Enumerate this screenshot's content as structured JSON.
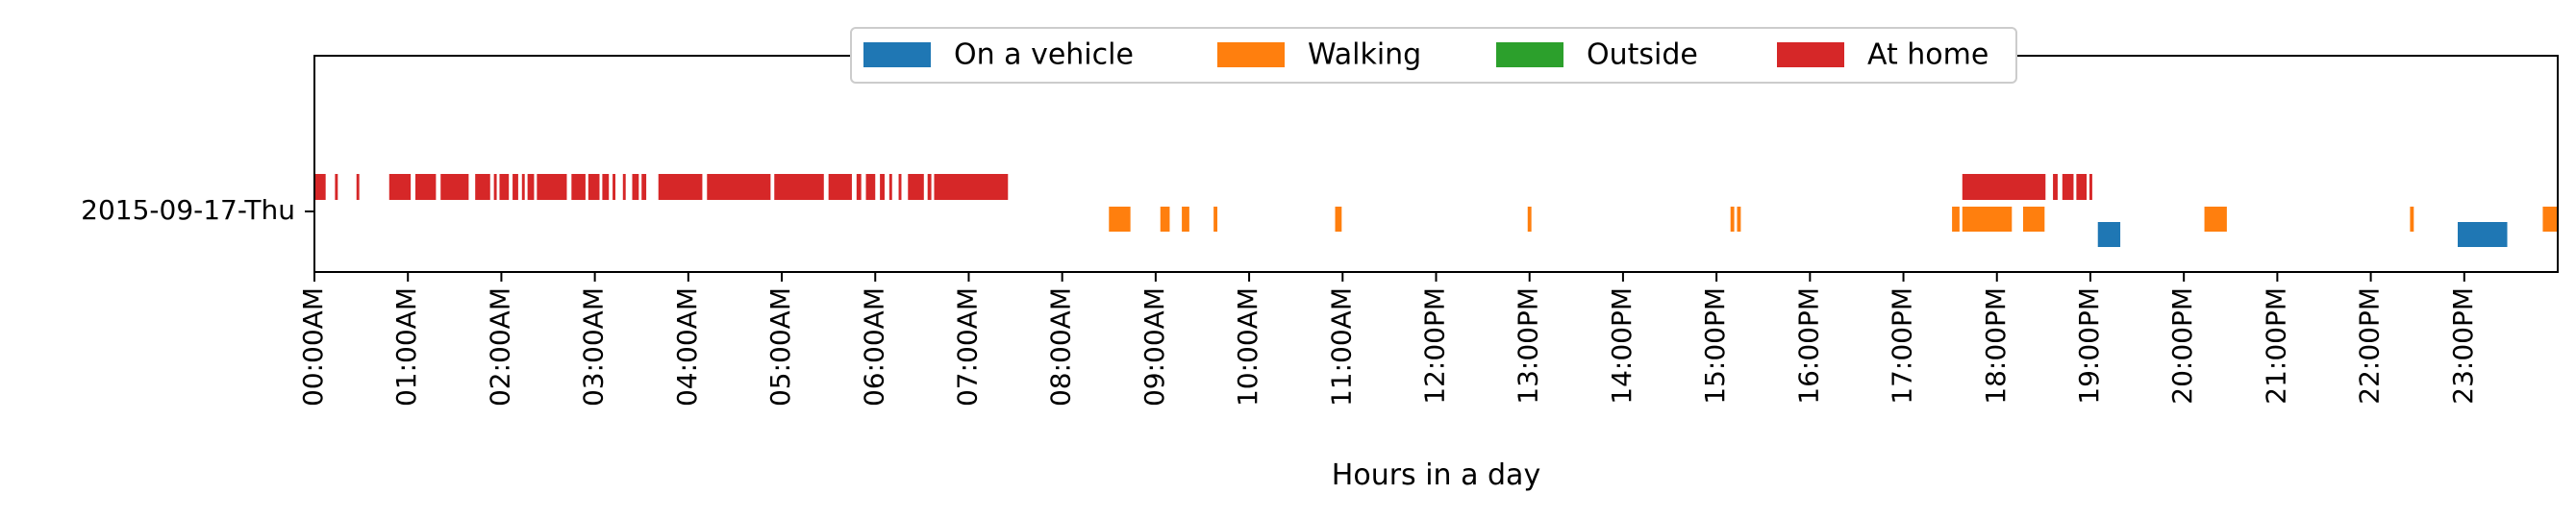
{
  "chart_data": {
    "type": "timeline",
    "xlabel": "Hours in a day",
    "ylabel": "",
    "xlim": [
      0,
      24
    ],
    "x_ticks": [
      {
        "value": 0,
        "label": "00:00AM"
      },
      {
        "value": 1,
        "label": "01:00AM"
      },
      {
        "value": 2,
        "label": "02:00AM"
      },
      {
        "value": 3,
        "label": "03:00AM"
      },
      {
        "value": 4,
        "label": "04:00AM"
      },
      {
        "value": 5,
        "label": "05:00AM"
      },
      {
        "value": 6,
        "label": "06:00AM"
      },
      {
        "value": 7,
        "label": "07:00AM"
      },
      {
        "value": 8,
        "label": "08:00AM"
      },
      {
        "value": 9,
        "label": "09:00AM"
      },
      {
        "value": 10,
        "label": "10:00AM"
      },
      {
        "value": 11,
        "label": "11:00AM"
      },
      {
        "value": 12,
        "label": "12:00PM"
      },
      {
        "value": 13,
        "label": "13:00PM"
      },
      {
        "value": 14,
        "label": "14:00PM"
      },
      {
        "value": 15,
        "label": "15:00PM"
      },
      {
        "value": 16,
        "label": "16:00PM"
      },
      {
        "value": 17,
        "label": "17:00PM"
      },
      {
        "value": 18,
        "label": "18:00PM"
      },
      {
        "value": 19,
        "label": "19:00PM"
      },
      {
        "value": 20,
        "label": "20:00PM"
      },
      {
        "value": 21,
        "label": "21:00PM"
      },
      {
        "value": 22,
        "label": "22:00PM"
      },
      {
        "value": 23,
        "label": "23:00PM"
      }
    ],
    "rows": [
      "2015-09-17-Thu"
    ],
    "legend": {
      "placement": "upper-center",
      "ncol": 4
    },
    "grid": false,
    "series": [
      {
        "name": "On a vehicle",
        "color": "#1f77b4",
        "intervals": [
          [
            19.08,
            19.32
          ],
          [
            22.93,
            23.46
          ]
        ]
      },
      {
        "name": "Walking",
        "color": "#ff7f0e",
        "intervals": [
          [
            8.5,
            8.73
          ],
          [
            9.05,
            9.15
          ],
          [
            9.28,
            9.36
          ],
          [
            9.62,
            9.66
          ],
          [
            10.92,
            10.99
          ],
          [
            12.98,
            13.02
          ],
          [
            15.15,
            15.19
          ],
          [
            15.22,
            15.26
          ],
          [
            17.52,
            17.6
          ],
          [
            17.63,
            18.16
          ],
          [
            18.28,
            18.51
          ],
          [
            20.22,
            20.46
          ],
          [
            22.42,
            22.46
          ],
          [
            23.84,
            24.0
          ]
        ]
      },
      {
        "name": "Outside",
        "color": "#2ca02c",
        "intervals": []
      },
      {
        "name": "At home",
        "color": "#d62728",
        "intervals": [
          [
            0.0,
            0.12
          ],
          [
            0.22,
            0.25
          ],
          [
            0.45,
            0.48
          ],
          [
            0.8,
            1.03
          ],
          [
            1.08,
            1.3
          ],
          [
            1.35,
            1.65
          ],
          [
            1.72,
            1.88
          ],
          [
            1.92,
            1.95
          ],
          [
            1.98,
            2.08
          ],
          [
            2.12,
            2.18
          ],
          [
            2.22,
            2.25
          ],
          [
            2.28,
            2.35
          ],
          [
            2.38,
            2.7
          ],
          [
            2.75,
            2.9
          ],
          [
            2.93,
            3.05
          ],
          [
            3.08,
            3.15
          ],
          [
            3.19,
            3.22
          ],
          [
            3.3,
            3.33
          ],
          [
            3.4,
            3.47
          ],
          [
            3.5,
            3.55
          ],
          [
            3.68,
            4.15
          ],
          [
            4.2,
            4.88
          ],
          [
            4.92,
            5.45
          ],
          [
            5.5,
            5.75
          ],
          [
            5.8,
            5.85
          ],
          [
            5.9,
            6.0
          ],
          [
            6.05,
            6.1
          ],
          [
            6.15,
            6.18
          ],
          [
            6.25,
            6.28
          ],
          [
            6.35,
            6.52
          ],
          [
            6.56,
            6.6
          ],
          [
            6.63,
            7.42
          ],
          [
            17.63,
            18.52
          ],
          [
            18.6,
            18.65
          ],
          [
            18.7,
            18.82
          ],
          [
            18.85,
            18.96
          ],
          [
            18.99,
            19.02
          ]
        ]
      }
    ]
  }
}
